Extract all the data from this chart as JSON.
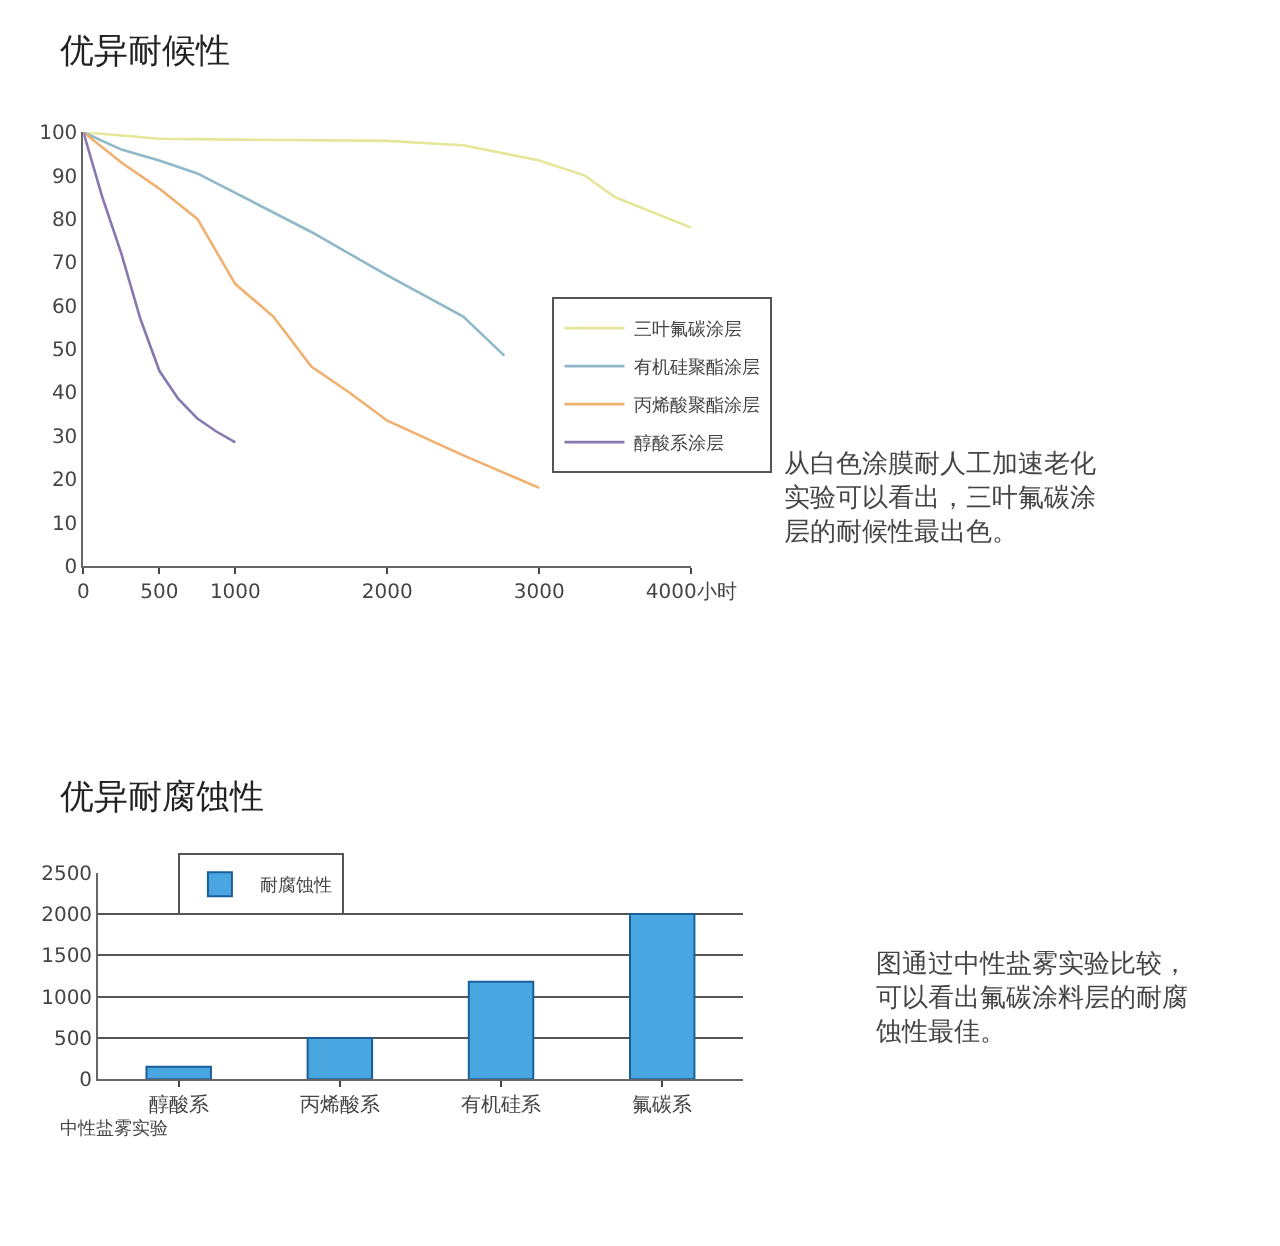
{
  "chart_data": [
    {
      "type": "line",
      "title": "优异耐候性",
      "xlim": [
        0,
        4000
      ],
      "xticks": [
        0,
        500,
        1000,
        2000,
        3000,
        {
          "value": 4000,
          "label": "4000小时"
        }
      ],
      "ylim": [
        0,
        100
      ],
      "yticks": [
        0,
        10,
        20,
        30,
        40,
        50,
        60,
        70,
        80,
        90,
        100
      ],
      "series": [
        {
          "name": "三叶氟碳涂层",
          "color": "#e6e69a",
          "x": [
            0,
            500,
            1000,
            2000,
            2500,
            3000,
            3300,
            3500,
            4000
          ],
          "values": [
            100,
            98.5,
            98.3,
            98,
            97,
            93.5,
            90,
            85,
            78
          ]
        },
        {
          "name": "有机硅聚酯涂层",
          "color": "#8fb8c8",
          "x": [
            0,
            250,
            500,
            750,
            1000,
            1500,
            2000,
            2500,
            2770
          ],
          "values": [
            100,
            96,
            93.5,
            90.5,
            86,
            77,
            67,
            57.5,
            48.5
          ]
        },
        {
          "name": "丙烯酸聚酯涂层",
          "color": "#f0b070",
          "x": [
            0,
            250,
            500,
            750,
            1000,
            1250,
            1500,
            1750,
            2000,
            2500,
            3000
          ],
          "values": [
            100,
            93,
            87,
            80,
            65,
            57.5,
            46,
            40,
            33.5,
            25.5,
            18
          ]
        },
        {
          "name": "醇酸系涂层",
          "color": "#8878b0",
          "x": [
            0,
            125,
            250,
            375,
            500,
            625,
            750,
            875,
            1000
          ],
          "values": [
            100,
            85,
            72,
            57,
            45,
            38.5,
            34,
            31,
            28.5
          ]
        }
      ],
      "legend": "right",
      "grid": false,
      "marker": "none",
      "line_style": "solid",
      "annotations": [
        "从白色涂膜耐人工加速老化实验可以看出，三叶氟碳涂层的耐候性最出色。"
      ]
    },
    {
      "type": "bar",
      "title": "优异耐腐蚀性",
      "categories": [
        "醇酸系",
        "丙烯酸系",
        "有机硅系",
        "氟碳系"
      ],
      "series": [
        {
          "name": "耐腐蚀性",
          "color": "#4aa6e0",
          "values": [
            150,
            500,
            1180,
            2000
          ]
        }
      ],
      "ylim": [
        0,
        2500
      ],
      "yticks": [
        0,
        500,
        1000,
        1500,
        2000,
        2500
      ],
      "legend": "top left",
      "grid": "y",
      "annotations": [
        "中性盐雾实验",
        "图通过中性盐雾实验比较，可以看出氟碳涂料层的耐腐蚀性最佳。"
      ]
    }
  ]
}
